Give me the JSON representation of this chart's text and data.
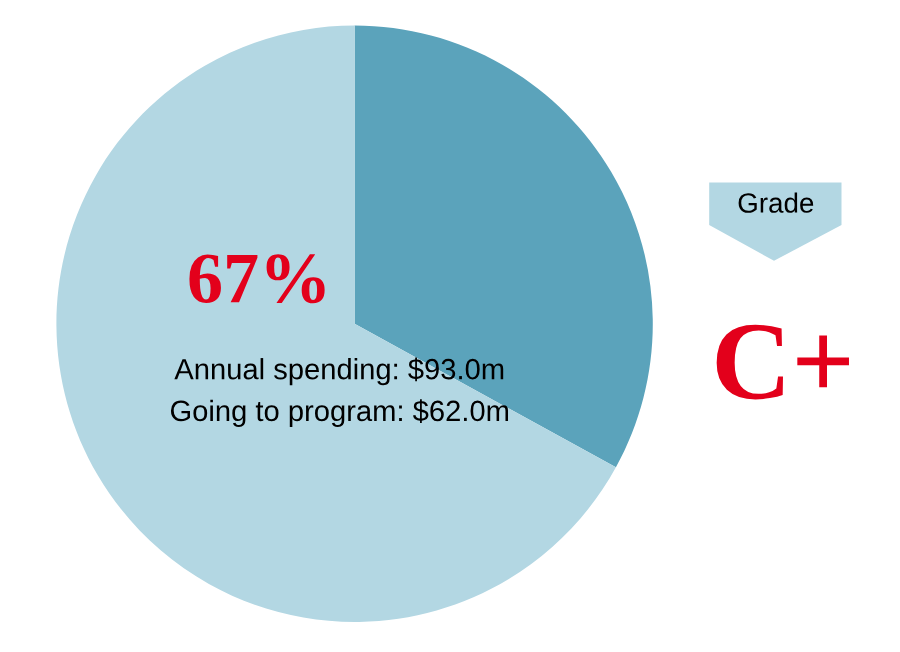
{
  "chart_data": {
    "type": "pie",
    "categories": [
      null,
      null
    ],
    "values": [
      33,
      67
    ],
    "colors": [
      "#5ba3bb",
      "#b3d7e3"
    ],
    "value_labels": [
      null,
      "67%"
    ],
    "annotations": [
      "Annual spending: $93.0m",
      "Going to program: $62.0m",
      "Grade",
      "C+"
    ]
  }
}
